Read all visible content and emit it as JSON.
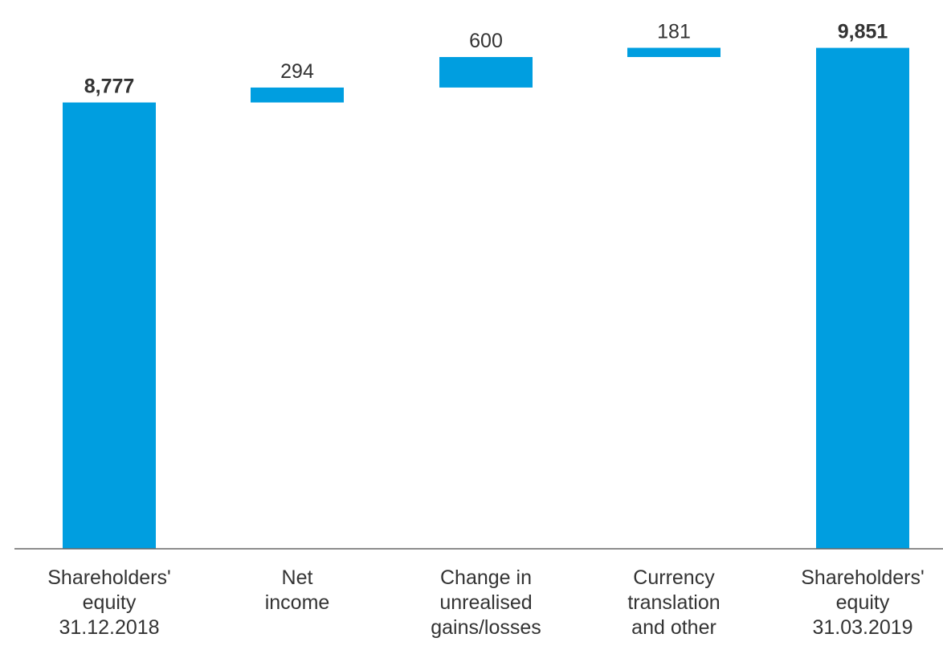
{
  "chart_data": {
    "type": "waterfall",
    "title": "",
    "xlabel": "",
    "ylabel": "",
    "categories": [
      "Shareholders'\nequity\n31.12.2018",
      "Net\nincome",
      "Change in\nunrealised\ngains/losses",
      "Currency\ntranslation\nand other",
      "Shareholders'\nequity\n31.03.2019"
    ],
    "values": [
      8777,
      294,
      600,
      181,
      9851
    ],
    "labels": [
      "8,777",
      "294",
      "600",
      "181",
      "9,851"
    ],
    "kinds": [
      "total",
      "delta",
      "delta",
      "delta",
      "total"
    ],
    "ylim": [
      0,
      10350
    ],
    "grid": false,
    "legend": "none",
    "bar_color": "#009ee0",
    "axis_color": "#666666",
    "label_color": "#333333"
  }
}
